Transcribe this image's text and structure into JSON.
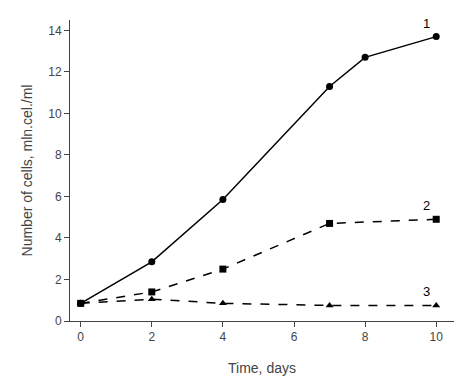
{
  "chart_data": {
    "type": "line",
    "x_label": "Time, days",
    "y_label": "Number of cells, mln.cel./ml",
    "series": [
      {
        "name": "1",
        "x": [
          0,
          2,
          4,
          7,
          8,
          10
        ],
        "values": [
          0.85,
          2.85,
          5.85,
          11.3,
          12.7,
          13.7
        ],
        "color": "#000000",
        "marker": "circle",
        "line_style": "solid"
      },
      {
        "name": "2",
        "x": [
          0,
          2,
          4,
          7,
          10
        ],
        "values": [
          0.85,
          1.4,
          2.5,
          4.7,
          4.9
        ],
        "color": "#000000",
        "marker": "square",
        "line_style": "dashed"
      },
      {
        "name": "3",
        "x": [
          0,
          2,
          4,
          7,
          10
        ],
        "values": [
          0.85,
          1.05,
          0.85,
          0.75,
          0.75
        ],
        "color": "#000000",
        "marker": "triangle",
        "line_style": "dashed"
      }
    ],
    "xlim": [
      -0.3,
      10.5
    ],
    "ylim": [
      0,
      14.5
    ],
    "xticks": [
      0,
      2,
      4,
      6,
      8,
      10
    ],
    "yticks": [
      0,
      2,
      4,
      6,
      8,
      10,
      12,
      14
    ],
    "grid": false
  }
}
